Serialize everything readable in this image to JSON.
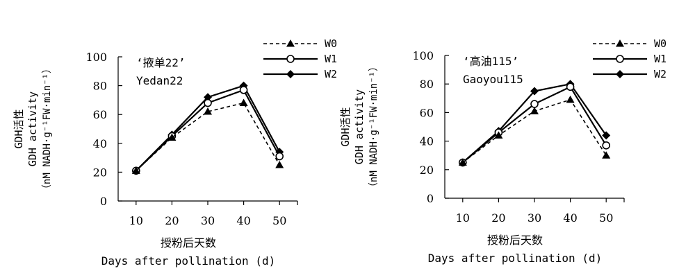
{
  "chart_data": [
    {
      "type": "line",
      "title_cn": "‘掖单22’",
      "title_en": "Yedan22",
      "ylabel_cn": "GDH活性",
      "ylabel_en": "GDH activity",
      "ylabel_unit": "（nM NADH·g⁻¹FW·min⁻¹）",
      "xlabel_cn": "授粉后天数",
      "xlabel_en": "Days after pollination (d)",
      "x": [
        10,
        20,
        30,
        40,
        50
      ],
      "xlim": [
        5,
        55
      ],
      "ylim": [
        0,
        100
      ],
      "yticks": [
        0,
        20,
        40,
        60,
        80,
        100
      ],
      "series": [
        {
          "name": "W0",
          "values": [
            21,
            44,
            62,
            68,
            25
          ]
        },
        {
          "name": "W1",
          "values": [
            21,
            45,
            68,
            77,
            31
          ]
        },
        {
          "name": "W2",
          "values": [
            21,
            46,
            72,
            80,
            34
          ]
        }
      ]
    },
    {
      "type": "line",
      "title_cn": "‘高油115’",
      "title_en": "Gaoyou115",
      "ylabel_cn": "GDH活性",
      "ylabel_en": "GDH activity",
      "ylabel_unit": "（nM NADH·g⁻¹FW·min⁻¹）",
      "xlabel_cn": "授粉后天数",
      "xlabel_en": "Days after pollination (d)",
      "x": [
        10,
        20,
        30,
        40,
        50
      ],
      "xlim": [
        5,
        55
      ],
      "ylim": [
        0,
        100
      ],
      "yticks": [
        0,
        20,
        40,
        60,
        80,
        100
      ],
      "series": [
        {
          "name": "W0",
          "values": [
            25,
            44,
            61,
            69,
            30
          ]
        },
        {
          "name": "W1",
          "values": [
            25,
            46,
            66,
            78,
            37
          ]
        },
        {
          "name": "W2",
          "values": [
            25,
            47,
            75,
            80,
            44
          ]
        }
      ]
    }
  ]
}
